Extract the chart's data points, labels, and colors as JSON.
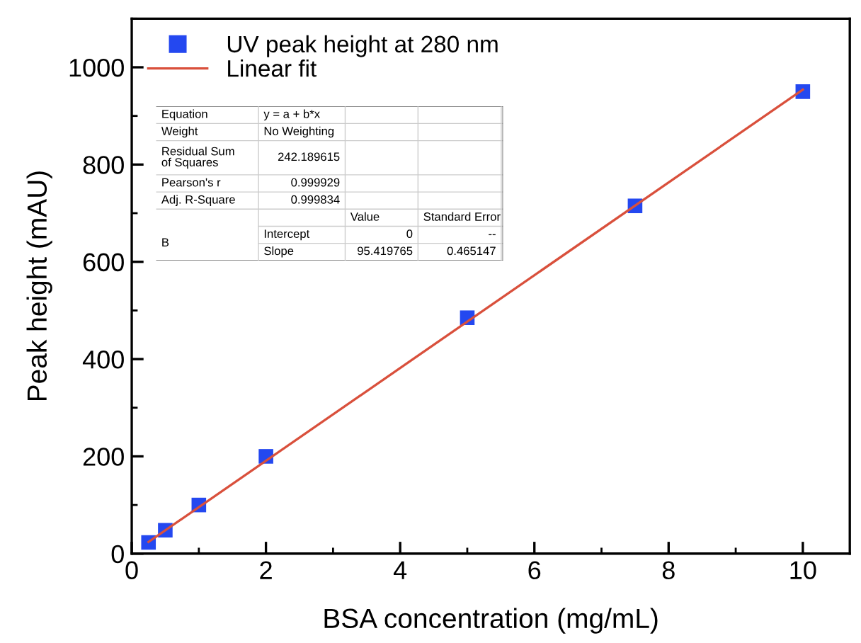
{
  "chart_data": {
    "type": "scatter",
    "xlabel": "BSA concentration (mg/mL)",
    "ylabel": "Peak height (mAU)",
    "series": [
      {
        "name": "UV peak height at 280 nm",
        "type": "scatter",
        "color": "#2448f0",
        "marker": "square",
        "x": [
          0.25,
          0.5,
          1,
          2,
          5,
          7.5,
          10
        ],
        "values": [
          23,
          48,
          100,
          200,
          485,
          715,
          950
        ]
      },
      {
        "name": "Linear fit",
        "type": "line",
        "color": "#d9503c",
        "marker": "none",
        "x": [
          0.25,
          10
        ],
        "values": [
          24,
          954
        ]
      }
    ],
    "xlim": [
      0,
      10.7
    ],
    "ylim": [
      0,
      1100
    ],
    "xticks": [
      0,
      2,
      4,
      6,
      8,
      10
    ],
    "yticks": [
      0,
      200,
      400,
      600,
      800,
      1000
    ],
    "grid": false,
    "legend": "top left",
    "annotations": [
      "Equation",
      "y = a + b*x",
      "Weight",
      "No Weighting",
      "Residual Sum\nof Squares",
      "242.189615",
      "Pearson's r",
      "0.999929",
      "Adj. R-Square",
      "0.999834",
      "Value",
      "Standard Error",
      "B",
      "Intercept",
      "0",
      "--",
      "Slope",
      "95.419765",
      "0.465147"
    ]
  }
}
